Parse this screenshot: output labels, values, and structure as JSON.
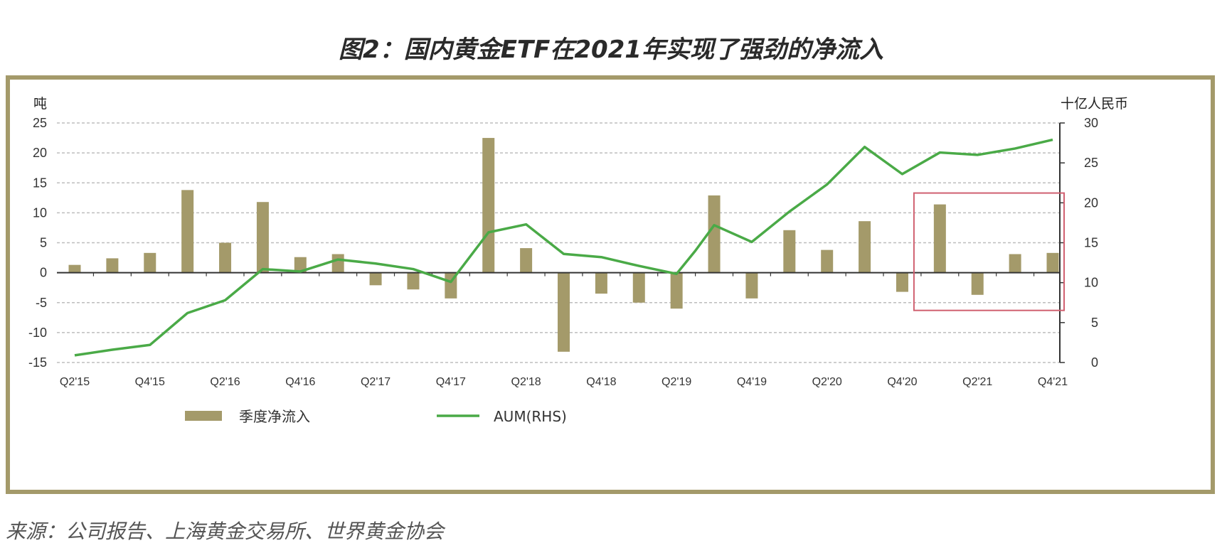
{
  "title": "图2：国内黄金ETF在2021年实现了强劲的净流入",
  "source": "来源：公司报告、上海黄金交易所、世界黄金协会",
  "chart_data": {
    "type": "bar+line",
    "left_unit": "吨",
    "right_unit": "十亿人民币",
    "left_ylim": [
      -15,
      25
    ],
    "left_ticks": [
      25,
      20,
      15,
      10,
      5,
      0,
      -5,
      -10,
      -15
    ],
    "right_ylim": [
      0,
      30
    ],
    "right_ticks": [
      30,
      25,
      20,
      15,
      10,
      5,
      0
    ],
    "grid": true,
    "legend_position": "bottom-left",
    "categories": [
      "Q2'15",
      "Q3'15",
      "Q4'15",
      "Q1'16",
      "Q2'16",
      "Q3'16",
      "Q4'16",
      "Q1'17",
      "Q2'17",
      "Q3'17",
      "Q4'17",
      "Q1'18",
      "Q2'18",
      "Q3'18",
      "Q4'18",
      "Q1'19",
      "Q2'19",
      "Q3'19",
      "Q4'19",
      "Q1'20",
      "Q2'20",
      "Q3'20",
      "Q4'20",
      "Q1'21",
      "Q2'21",
      "Q3'21",
      "Q4'21"
    ],
    "x_tick_labels": [
      {
        "index": 0,
        "label": "Q2'15"
      },
      {
        "index": 2,
        "label": "Q4'15"
      },
      {
        "index": 4,
        "label": "Q2'16"
      },
      {
        "index": 6,
        "label": "Q4'16"
      },
      {
        "index": 8,
        "label": "Q2'17"
      },
      {
        "index": 10,
        "label": "Q4'17"
      },
      {
        "index": 12,
        "label": "Q2'18"
      },
      {
        "index": 14,
        "label": "Q4'18"
      },
      {
        "index": 16,
        "label": "Q2'19"
      },
      {
        "index": 18,
        "label": "Q4'19"
      },
      {
        "index": 20,
        "label": "Q2'20"
      },
      {
        "index": 22,
        "label": "Q4'20"
      },
      {
        "index": 24,
        "label": "Q2'21"
      },
      {
        "index": 26,
        "label": "Q4'21"
      }
    ],
    "series": [
      {
        "name": "季度净流入",
        "type": "bar",
        "axis": "left",
        "color": "#a49a6a",
        "values": [
          1.3,
          2.4,
          3.3,
          13.8,
          5.0,
          11.8,
          2.6,
          3.1,
          -2.1,
          -2.8,
          -4.3,
          22.5,
          4.1,
          -13.2,
          -3.5,
          -5.0,
          -6.0,
          12.9,
          -4.3,
          7.1,
          3.8,
          8.6,
          -3.2,
          11.4,
          -3.7,
          3.1,
          3.3
        ]
      },
      {
        "name": "AUM(RHS)",
        "type": "line",
        "axis": "right",
        "color": "#4aaa47",
        "x": [
          0,
          1,
          2,
          3,
          4,
          5,
          6,
          7,
          8,
          9,
          10,
          11,
          12,
          13,
          14,
          15,
          16,
          16.5,
          17,
          18,
          19,
          20,
          21,
          22,
          23,
          24,
          25,
          26
        ],
        "values": [
          0.9,
          1.6,
          2.2,
          6.2,
          7.8,
          11.7,
          11.4,
          12.9,
          12.4,
          11.7,
          10.1,
          16.3,
          17.3,
          13.6,
          13.2,
          12.1,
          11.1,
          14.0,
          17.2,
          15.1,
          18.9,
          22.3,
          27.0,
          23.6,
          26.3,
          26.0,
          26.8,
          27.9
        ]
      }
    ],
    "annotation": {
      "type": "highlight-box",
      "color": "#d06070",
      "from_index": 22.5,
      "to_index": 26.5,
      "left_y_range": [
        -6.3,
        13.3
      ]
    }
  }
}
